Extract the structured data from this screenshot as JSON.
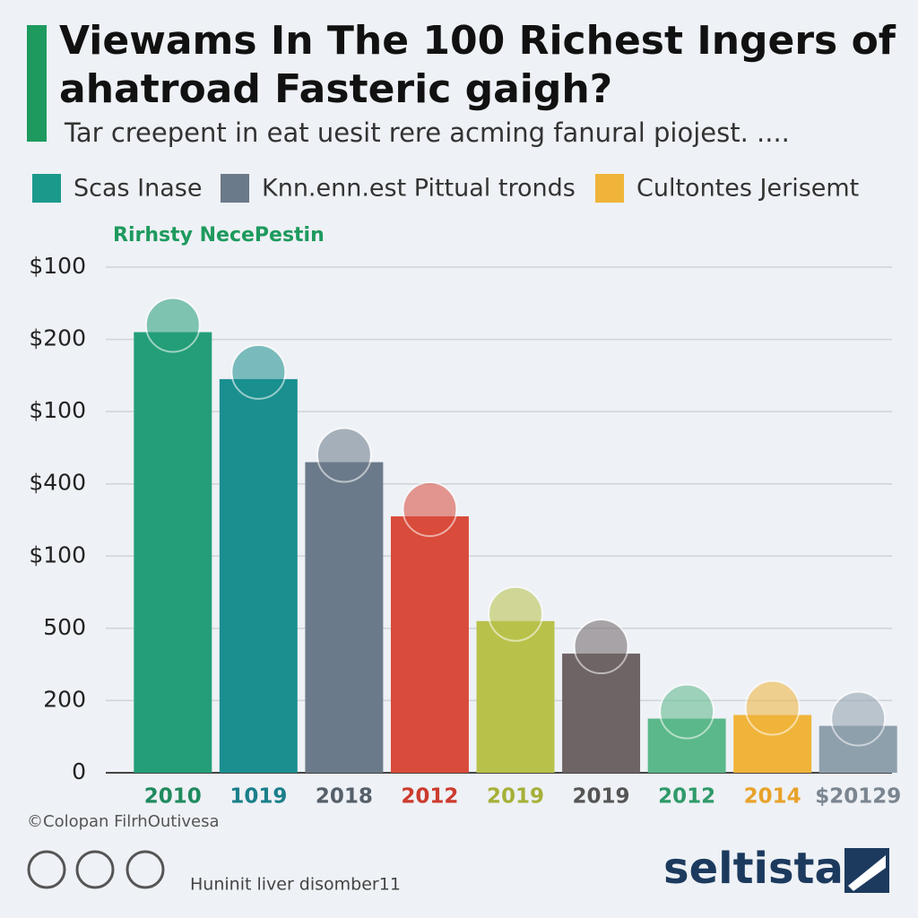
{
  "chart_data": {
    "type": "bar",
    "title": [
      "Viewams In The 100 Richest Ingers of",
      "ahatroad Fasteric gaigh?"
    ],
    "subtitle": "Tar creepent in eat uesit rere acming fanural piojest. ....",
    "legend": [
      {
        "name": "Scas Inase",
        "color": "#1b9a8c"
      },
      {
        "name": "Knn.enn.est Pittual tronds",
        "color": "#6b7a8a"
      },
      {
        "name": "Cultontes Jerisemt",
        "color": "#f0b43a"
      }
    ],
    "annotation": "Rirhsty NecePestin",
    "categories": [
      "2010",
      "1019",
      "2018",
      "2012",
      "2019",
      "2019",
      "2012",
      "2014",
      "$20129"
    ],
    "values": [
      6.1,
      5.45,
      4.3,
      3.55,
      2.1,
      1.65,
      0.75,
      0.8,
      0.65
    ],
    "colors": [
      "#239e78",
      "#1a8f8f",
      "#6b7a8a",
      "#d94b3a",
      "#b8c24a",
      "#6e6466",
      "#5bb88a",
      "#f0b43a",
      "#8fa0ad"
    ],
    "label_colors": [
      "#1f8a5e",
      "#1a7f8a",
      "#555f6a",
      "#cc3b2e",
      "#a6b038",
      "#555",
      "#2f9a6a",
      "#e8a22a",
      "#7a8590"
    ],
    "ylim": [
      0,
      7
    ],
    "yticks": [
      0,
      {
        "value": 1,
        "label": "200"
      },
      {
        "value": 2,
        "label": "500"
      },
      {
        "value": 3,
        "label": "$100"
      },
      {
        "value": 4,
        "label": "$400"
      },
      {
        "value": 5,
        "label": "$100"
      },
      {
        "value": 6,
        "label": "$200"
      },
      {
        "value": 7,
        "label": "$100"
      }
    ],
    "grid": true,
    "source": "©Colopan FilrhOutivesa",
    "footer": "Huninit liver disomber11",
    "brand": "seltista"
  }
}
